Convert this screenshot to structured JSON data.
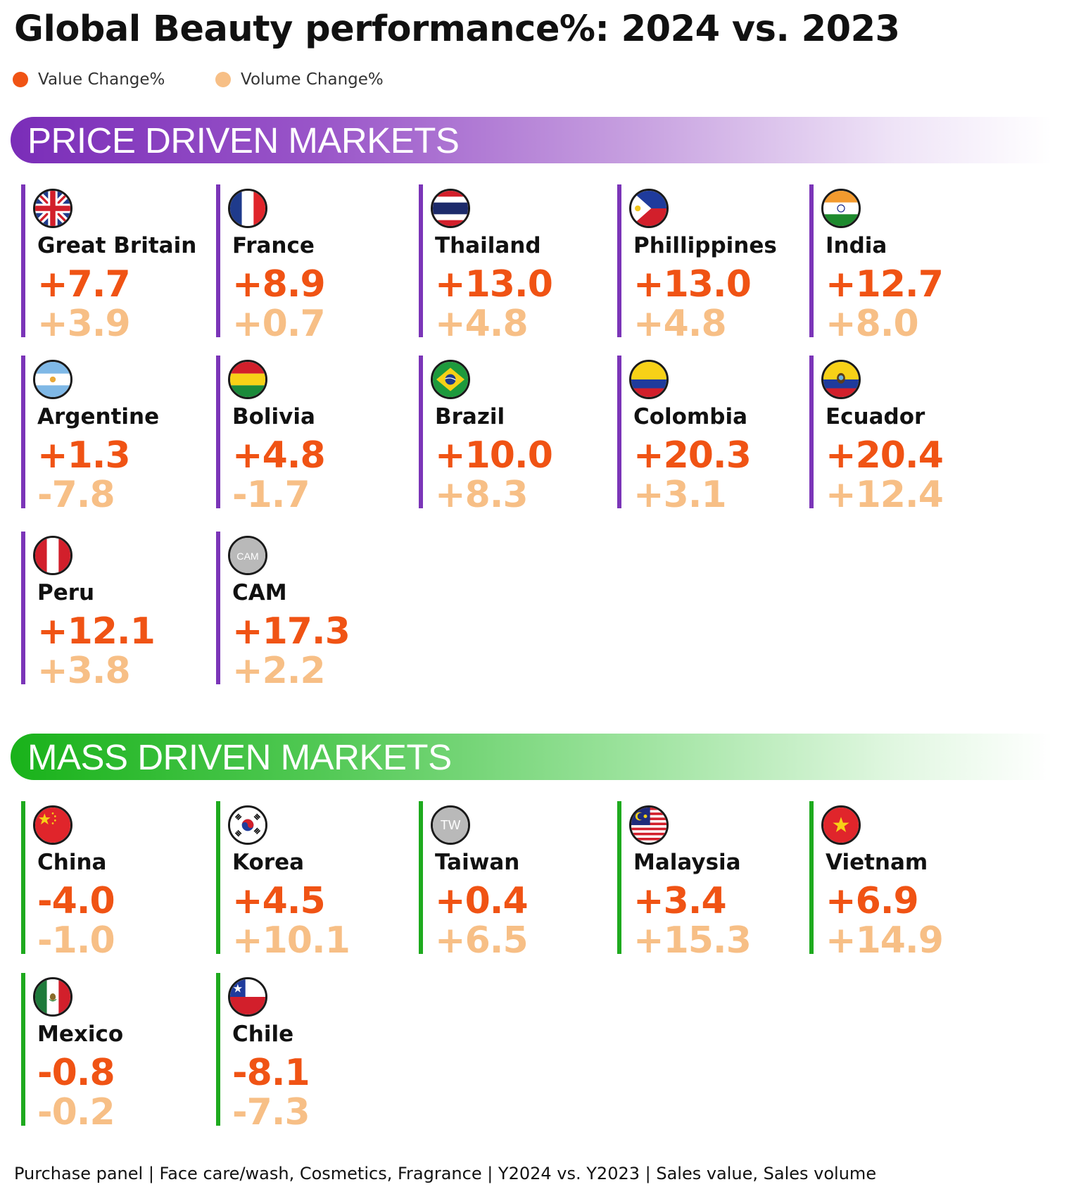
{
  "title": "Global Beauty performance%: 2024 vs. 2023",
  "legend": {
    "value_label": "Value Change%",
    "volume_label": "Volume Change%",
    "value_color": "#f05314",
    "volume_color": "#f7bf86"
  },
  "sections": {
    "price": {
      "title": "PRICE DRIVEN MARKETS",
      "accent": "#7b35b8",
      "markets": [
        {
          "name": "Great Britain",
          "value": "+7.7",
          "volume": "+3.9",
          "flag": "uk-flag-icon"
        },
        {
          "name": "France",
          "value": "+8.9",
          "volume": "+0.7",
          "flag": "france-flag-icon"
        },
        {
          "name": "Thailand",
          "value": "+13.0",
          "volume": "+4.8",
          "flag": "thailand-flag-icon"
        },
        {
          "name": "Phillippines",
          "value": "+13.0",
          "volume": "+4.8",
          "flag": "philippines-flag-icon"
        },
        {
          "name": "India",
          "value": "+12.7",
          "volume": "+8.0",
          "flag": "india-flag-icon"
        },
        {
          "name": "Argentine",
          "value": "+1.3",
          "volume": "-7.8",
          "flag": "argentina-flag-icon"
        },
        {
          "name": "Bolivia",
          "value": "+4.8",
          "volume": "-1.7",
          "flag": "bolivia-flag-icon"
        },
        {
          "name": "Brazil",
          "value": "+10.0",
          "volume": "+8.3",
          "flag": "brazil-flag-icon"
        },
        {
          "name": "Colombia",
          "value": "+20.3",
          "volume": "+3.1",
          "flag": "colombia-flag-icon"
        },
        {
          "name": "Ecuador",
          "value": "+20.4",
          "volume": "+12.4",
          "flag": "ecuador-flag-icon"
        },
        {
          "name": "Peru",
          "value": "+12.1",
          "volume": "+3.8",
          "flag": "peru-flag-icon"
        },
        {
          "name": "CAM",
          "value": "+17.3",
          "volume": "+2.2",
          "flag": "cam-badge-icon",
          "badge": "CAM"
        }
      ]
    },
    "mass": {
      "title": "MASS DRIVEN MARKETS",
      "accent": "#1eaa1e",
      "markets": [
        {
          "name": "China",
          "value": "-4.0",
          "volume": "-1.0",
          "flag": "china-flag-icon"
        },
        {
          "name": "Korea",
          "value": "+4.5",
          "volume": "+10.1",
          "flag": "korea-flag-icon"
        },
        {
          "name": "Taiwan",
          "value": "+0.4",
          "volume": "+6.5",
          "flag": "tw-badge-icon",
          "badge": "TW"
        },
        {
          "name": "Malaysia",
          "value": "+3.4",
          "volume": "+15.3",
          "flag": "malaysia-flag-icon"
        },
        {
          "name": "Vietnam",
          "value": "+6.9",
          "volume": "+14.9",
          "flag": "vietnam-flag-icon"
        },
        {
          "name": "Mexico",
          "value": "-0.8",
          "volume": "-0.2",
          "flag": "mexico-flag-icon"
        },
        {
          "name": "Chile",
          "value": "-8.1",
          "volume": "-7.3",
          "flag": "chile-flag-icon"
        }
      ]
    }
  },
  "footer": "Purchase panel | Face care/wash, Cosmetics, Fragrance | Y2024 vs. Y2023 | Sales value, Sales volume"
}
